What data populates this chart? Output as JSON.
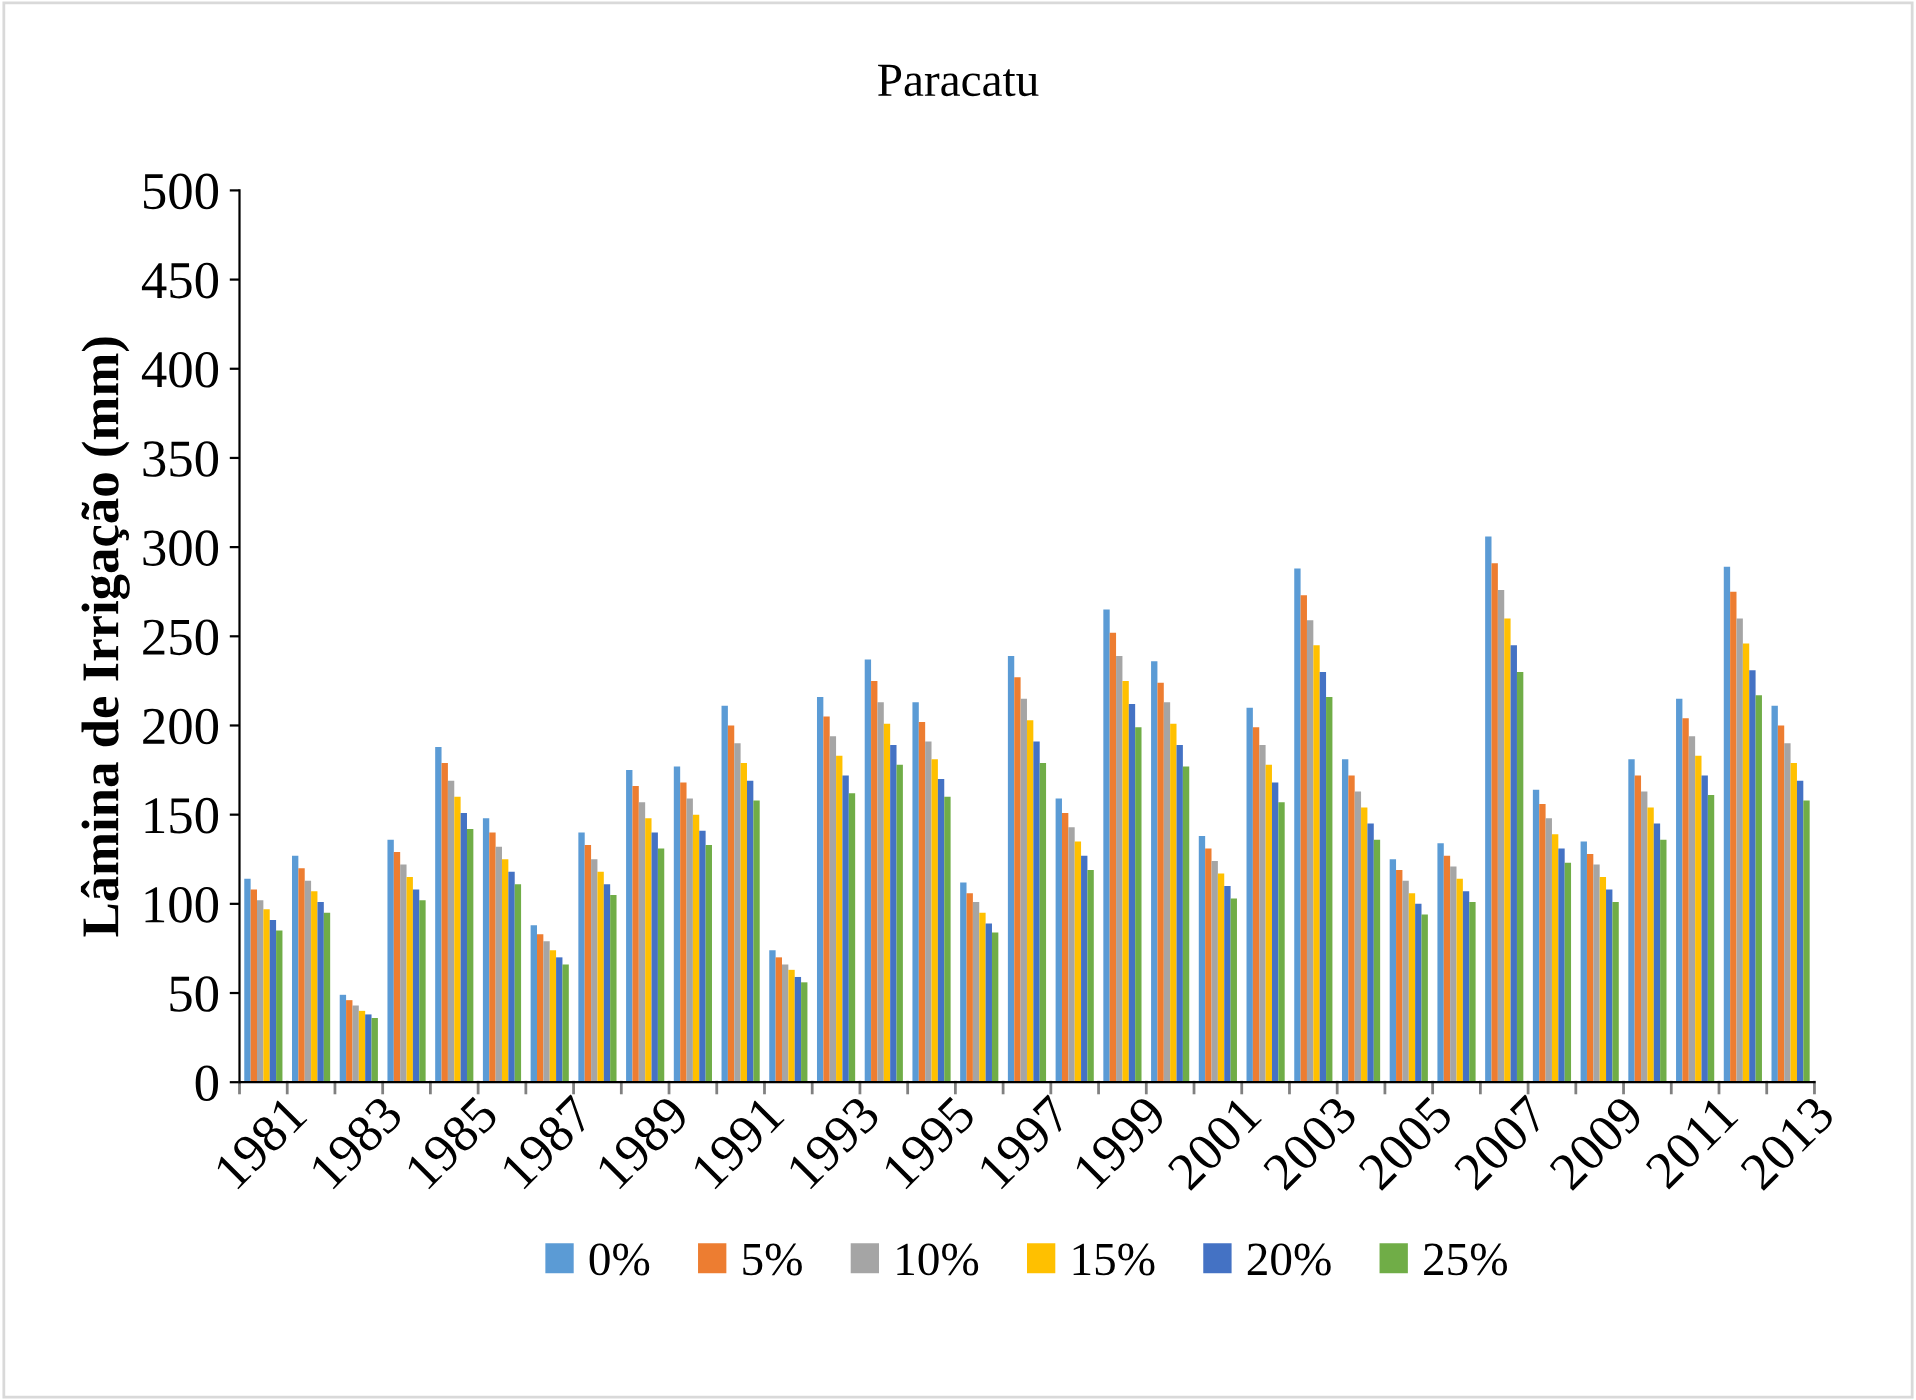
{
  "chart_data": {
    "type": "bar",
    "title": "Paracatu",
    "ylabel": "Lâmina de Irrigação (mm)",
    "categories": [
      "1981",
      null,
      "1983",
      null,
      "1985",
      null,
      "1987",
      null,
      "1989",
      null,
      "1991",
      null,
      "1993",
      null,
      "1995",
      null,
      "1997",
      null,
      "1999",
      null,
      "2001",
      null,
      "2003",
      null,
      "2005",
      null,
      "2007",
      null,
      "2009",
      null,
      "2011",
      null,
      "2013"
    ],
    "series": [
      {
        "name": "0%",
        "color": "#5b9bd5",
        "values": [
          114,
          127,
          49,
          136,
          188,
          148,
          88,
          140,
          175,
          177,
          211,
          74,
          216,
          237,
          213,
          112,
          239,
          159,
          265,
          236,
          138,
          210,
          288,
          181,
          125,
          134,
          306,
          164,
          135,
          181,
          215,
          289,
          211
        ]
      },
      {
        "name": "5%",
        "color": "#ed7d31",
        "values": [
          108,
          120,
          46,
          129,
          179,
          140,
          83,
          133,
          166,
          168,
          200,
          70,
          205,
          225,
          202,
          106,
          227,
          151,
          252,
          224,
          131,
          199,
          273,
          172,
          119,
          127,
          291,
          156,
          128,
          172,
          204,
          275,
          200
        ]
      },
      {
        "name": "10%",
        "color": "#a5a5a5",
        "values": [
          102,
          113,
          43,
          122,
          169,
          132,
          79,
          125,
          157,
          159,
          190,
          66,
          194,
          213,
          191,
          101,
          215,
          143,
          239,
          213,
          124,
          189,
          259,
          163,
          113,
          121,
          276,
          148,
          122,
          163,
          194,
          260,
          190
        ]
      },
      {
        "name": "15%",
        "color": "#ffc000",
        "values": [
          97,
          107,
          40,
          115,
          160,
          125,
          74,
          118,
          148,
          150,
          179,
          63,
          183,
          201,
          181,
          95,
          203,
          135,
          225,
          201,
          117,
          178,
          245,
          154,
          106,
          114,
          260,
          139,
          115,
          154,
          183,
          246,
          179
        ]
      },
      {
        "name": "20%",
        "color": "#4472c4",
        "values": [
          91,
          101,
          38,
          108,
          151,
          118,
          70,
          111,
          140,
          141,
          169,
          59,
          172,
          189,
          170,
          89,
          191,
          127,
          212,
          189,
          110,
          168,
          230,
          145,
          100,
          107,
          245,
          131,
          108,
          145,
          172,
          231,
          169
        ]
      },
      {
        "name": "25%",
        "color": "#70ad47",
        "values": [
          85,
          95,
          36,
          102,
          142,
          111,
          66,
          105,
          131,
          133,
          158,
          56,
          162,
          178,
          160,
          84,
          179,
          119,
          199,
          177,
          103,
          157,
          216,
          136,
          94,
          101,
          230,
          123,
          101,
          136,
          161,
          217,
          158
        ]
      }
    ],
    "ylim": [
      0,
      500
    ],
    "yticks": [
      0,
      50,
      100,
      150,
      200,
      250,
      300,
      350,
      400,
      450,
      500
    ],
    "grid": false,
    "legend": "bottom"
  }
}
